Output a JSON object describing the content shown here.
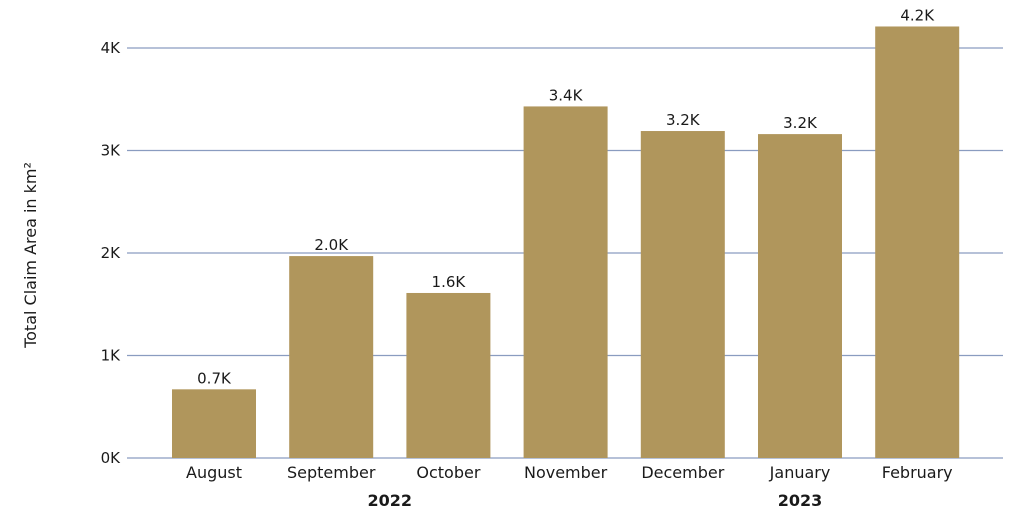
{
  "chart_data": {
    "type": "bar",
    "ylabel": "Total Claim Area in km²",
    "categories": [
      "August",
      "September",
      "October",
      "November",
      "December",
      "January",
      "February"
    ],
    "values": [
      0.67,
      1.97,
      1.61,
      3.43,
      3.19,
      3.16,
      4.21
    ],
    "data_labels": [
      "0.7K",
      "2.0K",
      "1.6K",
      "3.4K",
      "3.2K",
      "3.2K",
      "4.2K"
    ],
    "ylim": [
      0,
      4
    ],
    "yticks": [
      0,
      1,
      2,
      3,
      4
    ],
    "ytick_labels": [
      "0K",
      "1K",
      "2K",
      "3K",
      "4K"
    ],
    "year_groups": [
      {
        "label": "2022",
        "start": 0,
        "end": 3
      },
      {
        "label": "2023",
        "start": 4,
        "end": 6
      }
    ],
    "grid": true,
    "bar_color": "#b0965c",
    "grid_color": "#8a9cc0"
  }
}
